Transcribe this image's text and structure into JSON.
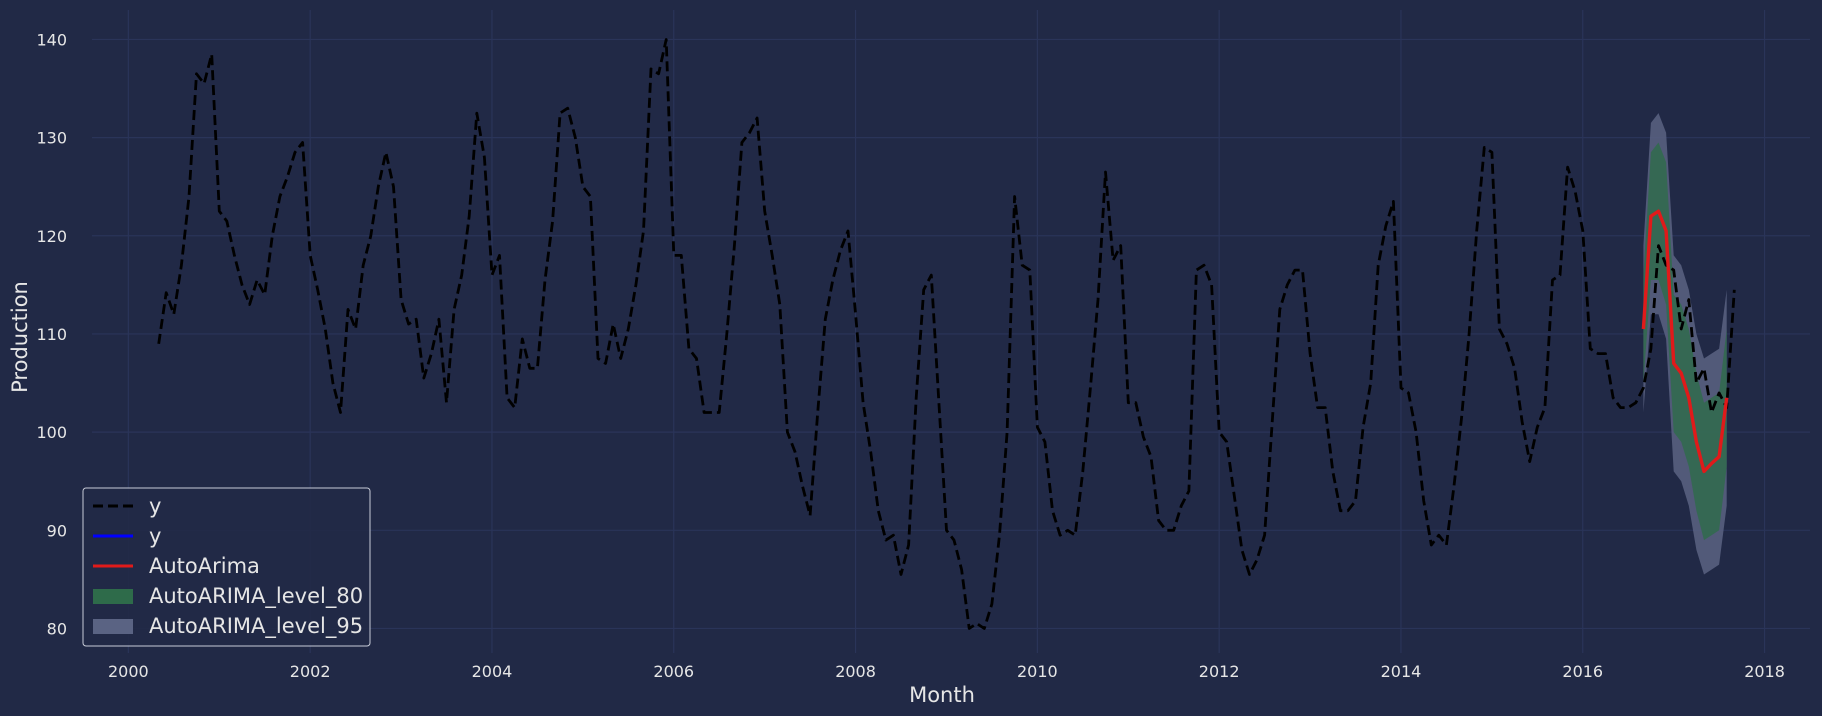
{
  "chart_data": {
    "type": "line",
    "xlabel": "Month",
    "ylabel": "Production",
    "xlim": [
      1999.6,
      2018.5
    ],
    "ylim": [
      77.5,
      143
    ],
    "x_ticks": [
      2000,
      2002,
      2004,
      2006,
      2008,
      2010,
      2012,
      2014,
      2016,
      2018
    ],
    "y_ticks": [
      80,
      90,
      100,
      110,
      120,
      130,
      140
    ],
    "grid": true,
    "legend_position": "lower-left",
    "colors": {
      "background": "#212946",
      "grid": "#2a3459",
      "y_actual": "#000000",
      "y_fitted": "#0000ff",
      "forecast": "#e01a1a",
      "level_80": "#2e6b4a",
      "level_95": "#5a6383"
    },
    "series": [
      {
        "name": "y",
        "style": "dashed",
        "start_year": 2000,
        "start_month": 5,
        "values": [
          109,
          114.2,
          112,
          117,
          124,
          136.5,
          135.5,
          138.5,
          122.5,
          121.5,
          118,
          115,
          113,
          115.5,
          114,
          120,
          124,
          126,
          128.5,
          129.5,
          118,
          114.5,
          110.5,
          105,
          102,
          112.5,
          110.5,
          117,
          120,
          125,
          128.5,
          125,
          113.5,
          111,
          111.5,
          105.5,
          108,
          111.5,
          103,
          112.5,
          116,
          122,
          132.5,
          128,
          116,
          118,
          103.5,
          102.5,
          109.5,
          106.5,
          106.5,
          115.5,
          121.5,
          132.5,
          133,
          130,
          125,
          124,
          107.5,
          107,
          111,
          107.5,
          110.5,
          115,
          120.5,
          137,
          136.5,
          140,
          118,
          118,
          108.5,
          107.5,
          102,
          102,
          102,
          110,
          119,
          129.5,
          130.5,
          132,
          122.5,
          118,
          113,
          100,
          98,
          94.5,
          91.5,
          102,
          111.5,
          115.5,
          118.5,
          120.5,
          112,
          103,
          98,
          92,
          89,
          89.5,
          85.5,
          88.5,
          103.5,
          114.5,
          116,
          103,
          90,
          89,
          86,
          80,
          80.5,
          80,
          82.5,
          89.5,
          100,
          124,
          117,
          116.5,
          100.5,
          99,
          92,
          89.5,
          90,
          89.5,
          96,
          104.5,
          113.5,
          126.5,
          117.5,
          119,
          103,
          103,
          99.5,
          97.5,
          91,
          90,
          90,
          92.5,
          94,
          116.5,
          117,
          115,
          100,
          99,
          93.5,
          88,
          85.5,
          87,
          89.5,
          101,
          112.5,
          115,
          116.5,
          116.5,
          108,
          102.5,
          102.5,
          96,
          92,
          92,
          93,
          100.5,
          105,
          117,
          121,
          123.5,
          104.5,
          104,
          100,
          93,
          88.5,
          89.5,
          88.5,
          94.5,
          101.5,
          110,
          120.5,
          129,
          128.5,
          110.5,
          109,
          106.5,
          101,
          97,
          100.5,
          102.5,
          115.5,
          116,
          127,
          124.5,
          120.5,
          108.5,
          108,
          108,
          103.5,
          102.5,
          102.5,
          103,
          104.5,
          108.5,
          119,
          117,
          116.5,
          110.5,
          113.5,
          105,
          106.5,
          102,
          104,
          102.5,
          114.5
        ]
      },
      {
        "name": "y",
        "style": "solid",
        "values": []
      },
      {
        "name": "AutoArima",
        "style": "solid",
        "start_year": 2016,
        "start_month": 9,
        "values": [
          110.5,
          122,
          122.5,
          120.5,
          107,
          106,
          103.5,
          99,
          96,
          96.8,
          97.5,
          103.5
        ]
      }
    ],
    "bands": [
      {
        "name": "AutoARIMA_level_95",
        "start_year": 2016,
        "start_month": 9,
        "lower": [
          102,
          112,
          112,
          109.5,
          96,
          95,
          92.5,
          88,
          85.5,
          86,
          86.5,
          92.5
        ],
        "upper": [
          119,
          131.5,
          132.5,
          130.5,
          118,
          117,
          114.5,
          110,
          107.5,
          108,
          108.5,
          114.5
        ]
      },
      {
        "name": "AutoARIMA_level_80",
        "start_year": 2016,
        "start_month": 9,
        "lower": [
          105,
          115.5,
          115.5,
          113,
          100,
          99,
          96.5,
          92,
          89,
          89.5,
          90,
          96.5
        ],
        "upper": [
          116,
          128.5,
          129.5,
          127.5,
          114,
          113,
          110.5,
          106,
          103,
          103.5,
          104,
          110.5
        ]
      }
    ],
    "legend": [
      {
        "label": "y",
        "kind": "dashed",
        "color": "#000000"
      },
      {
        "label": "y",
        "kind": "line",
        "color": "#0000ff"
      },
      {
        "label": "AutoArima",
        "kind": "line",
        "color": "#e01a1a"
      },
      {
        "label": "AutoARIMA_level_80",
        "kind": "patch",
        "color": "#2e6b4a"
      },
      {
        "label": "AutoARIMA_level_95",
        "kind": "patch",
        "color": "#5a6383"
      }
    ]
  }
}
